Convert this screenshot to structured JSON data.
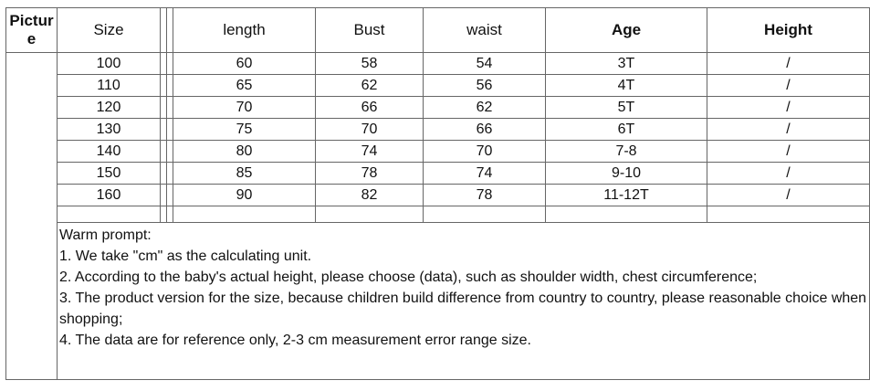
{
  "header": {
    "columns": [
      "Picture",
      "Size",
      "length",
      "Bust",
      "waist",
      "Age",
      "Height"
    ]
  },
  "table": {
    "rows": [
      [
        "100",
        "60",
        "58",
        "54",
        "3T",
        "/"
      ],
      [
        "110",
        "65",
        "62",
        "56",
        "4T",
        "/"
      ],
      [
        "120",
        "70",
        "66",
        "62",
        "5T",
        "/"
      ],
      [
        "130",
        "75",
        "70",
        "66",
        "6T",
        "/"
      ],
      [
        "140",
        "80",
        "74",
        "70",
        "7-8",
        "/"
      ],
      [
        "150",
        "85",
        "78",
        "74",
        "9-10",
        "/"
      ],
      [
        "160",
        "90",
        "82",
        "78",
        "11-12T",
        "/"
      ]
    ]
  },
  "notes": {
    "title": "Warm prompt:",
    "lines": [
      "1. We take \"cm\" as the calculating unit.",
      "2. According to the baby's actual height, please choose (data), such as shoulder width, chest circumference;",
      "3. The product version for the size, because children build difference from country to country, please reasonable choice when shopping;",
      "4. The data are for reference only, 2-3 cm measurement error range size."
    ]
  }
}
